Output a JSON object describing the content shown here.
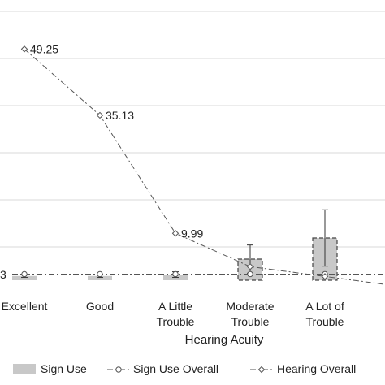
{
  "chart_data": {
    "type": "bar",
    "xlabel": "Hearing Acuity",
    "ylabel": "",
    "ylim": [
      0,
      50
    ],
    "grid": true,
    "legend_position": "bottom",
    "categories": [
      [
        "Excellent"
      ],
      [
        "Good"
      ],
      [
        "A Little",
        "Trouble"
      ],
      [
        "Moderate",
        "Trouble"
      ],
      [
        "A Lot of",
        "Trouble"
      ]
    ],
    "series": [
      {
        "name": "Sign Use",
        "kind": "bar",
        "values": [
          0.9,
          0.9,
          1.2,
          4.5,
          9.0
        ],
        "error": [
          0.3,
          0.3,
          0.6,
          3.0,
          6.0
        ],
        "highlight_dashed": [
          false,
          false,
          false,
          true,
          true
        ]
      },
      {
        "name": "Sign Use Overall",
        "kind": "line",
        "values": [
          1.3,
          1.3,
          1.3,
          1.3,
          1.3
        ]
      },
      {
        "name": "Hearing Overall",
        "kind": "line",
        "values": [
          49.25,
          35.13,
          9.99,
          2.9,
          0.8
        ],
        "data_labels": [
          "49.25",
          "35.13",
          "9.99",
          "",
          ""
        ]
      }
    ],
    "left_cut_label": "3",
    "colors": {
      "bar_fill": "#c8c8c8",
      "bar_edge": "#555555",
      "line": "#555555",
      "grid": "#d9d9d9",
      "text": "#222222"
    }
  }
}
